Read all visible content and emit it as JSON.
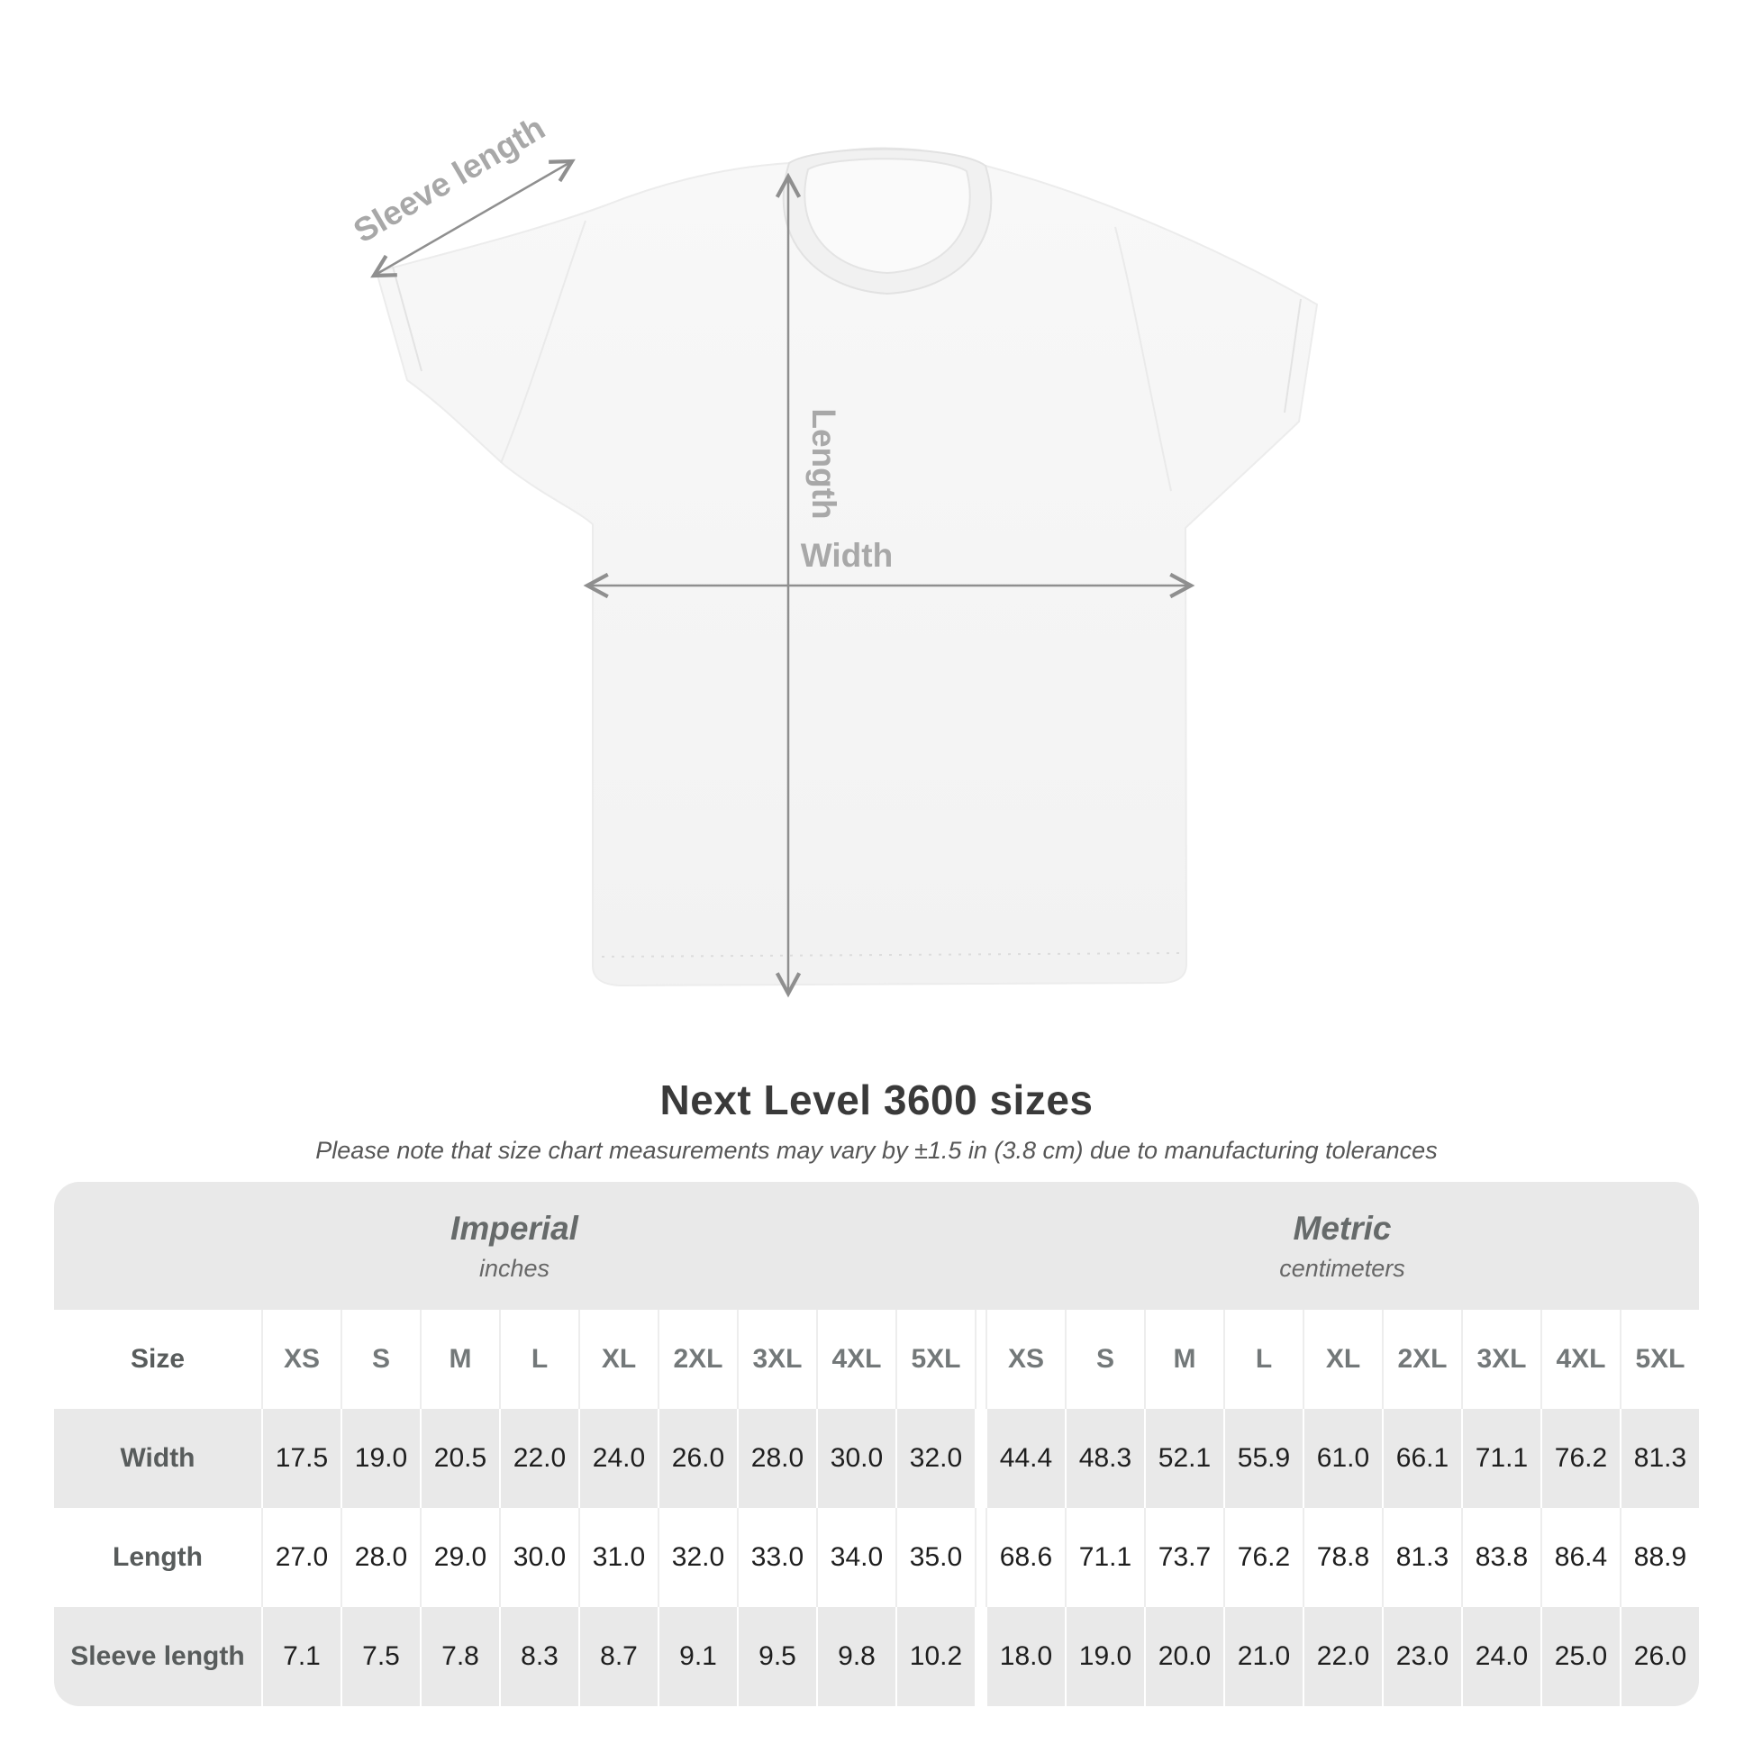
{
  "diagram": {
    "sleeve_label": "Sleeve length",
    "length_label": "Length",
    "width_label": "Width"
  },
  "title": "Next Level 3600 sizes",
  "subtitle": "Please note that size chart measurements may vary by ±1.5 in (3.8 cm) due to manufacturing tolerances",
  "size_table": {
    "corner_label": "Size",
    "unit_groups": [
      {
        "label": "Imperial",
        "sublabel": "inches"
      },
      {
        "label": "Metric",
        "sublabel": "centimeters"
      }
    ],
    "sizes": [
      "XS",
      "S",
      "M",
      "L",
      "XL",
      "2XL",
      "3XL",
      "4XL",
      "5XL"
    ],
    "rows": [
      {
        "label": "Width",
        "imperial": [
          "17.5",
          "19.0",
          "20.5",
          "22.0",
          "24.0",
          "26.0",
          "28.0",
          "30.0",
          "32.0"
        ],
        "metric": [
          "44.4",
          "48.3",
          "52.1",
          "55.9",
          "61.0",
          "66.1",
          "71.1",
          "76.2",
          "81.3"
        ]
      },
      {
        "label": "Length",
        "imperial": [
          "27.0",
          "28.0",
          "29.0",
          "30.0",
          "31.0",
          "32.0",
          "33.0",
          "34.0",
          "35.0"
        ],
        "metric": [
          "68.6",
          "71.1",
          "73.7",
          "76.2",
          "78.8",
          "81.3",
          "83.8",
          "86.4",
          "88.9"
        ]
      },
      {
        "label": "Sleeve length",
        "imperial": [
          "7.1",
          "7.5",
          "7.8",
          "8.3",
          "8.7",
          "9.1",
          "9.5",
          "9.8",
          "10.2"
        ],
        "metric": [
          "18.0",
          "19.0",
          "20.0",
          "21.0",
          "22.0",
          "23.0",
          "24.0",
          "25.0",
          "26.0"
        ]
      }
    ]
  },
  "chart_data": {
    "type": "table",
    "title": "Next Level 3600 sizes",
    "columns": [
      "XS",
      "S",
      "M",
      "L",
      "XL",
      "2XL",
      "3XL",
      "4XL",
      "5XL"
    ],
    "rows_imperial_inches": {
      "Width": [
        17.5,
        19.0,
        20.5,
        22.0,
        24.0,
        26.0,
        28.0,
        30.0,
        32.0
      ],
      "Length": [
        27.0,
        28.0,
        29.0,
        30.0,
        31.0,
        32.0,
        33.0,
        34.0,
        35.0
      ],
      "Sleeve length": [
        7.1,
        7.5,
        7.8,
        8.3,
        8.7,
        9.1,
        9.5,
        9.8,
        10.2
      ]
    },
    "rows_metric_centimeters": {
      "Width": [
        44.4,
        48.3,
        52.1,
        55.9,
        61.0,
        66.1,
        71.1,
        76.2,
        81.3
      ],
      "Length": [
        68.6,
        71.1,
        73.7,
        76.2,
        78.8,
        81.3,
        83.8,
        86.4,
        88.9
      ],
      "Sleeve length": [
        18.0,
        19.0,
        20.0,
        21.0,
        22.0,
        23.0,
        24.0,
        25.0,
        26.0
      ]
    }
  },
  "colors": {
    "arrow_gray": "#8f8f8f",
    "measure_label_gray": "#a8a8a8",
    "table_band_gray": "#e9e9e9",
    "title_color": "#3a3a3a",
    "value_color": "#1e1e1e"
  }
}
